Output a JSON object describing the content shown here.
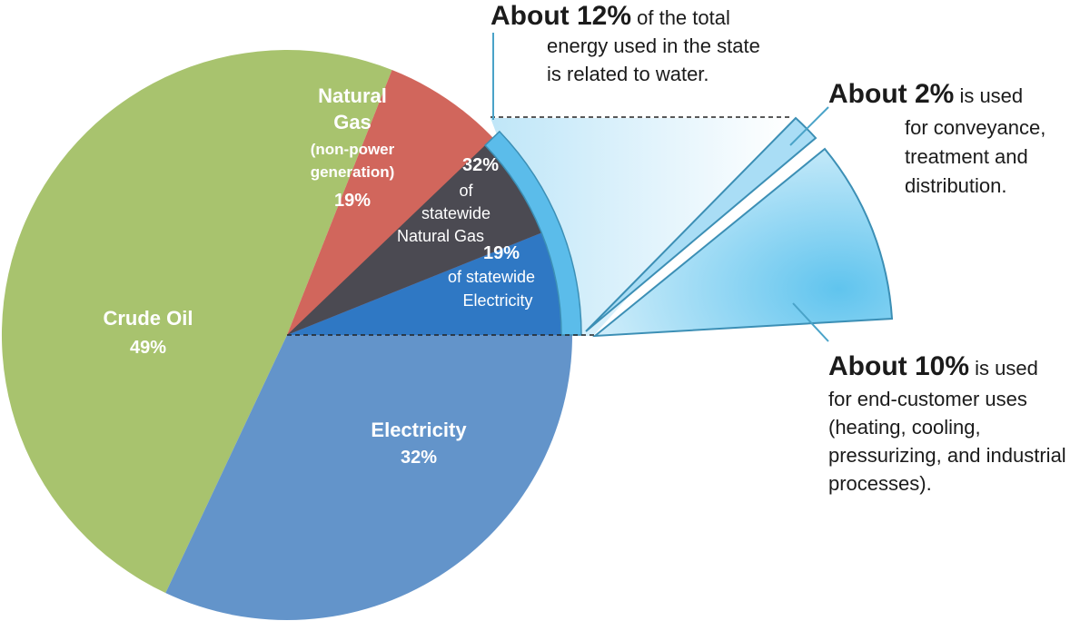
{
  "colors": {
    "crude_oil": "#a8c36e",
    "electricity": "#6394ca",
    "natural_gas": "#d1665c",
    "gas_water": "#4b4a52",
    "elec_water": "#2f78c4",
    "rim": "#5bbcea",
    "rim_stroke": "#3c8fb5",
    "leader": "#4aa3c8",
    "wedge_fill_light": "#d7f0fb",
    "wedge_fill_dark": "#60c4ee"
  },
  "chart_data": {
    "type": "pie",
    "title": "",
    "slices": [
      {
        "key": "crude_oil",
        "label": "Crude Oil",
        "value": 49,
        "value_label": "49%"
      },
      {
        "key": "electricity",
        "label": "Electricity",
        "value": 32,
        "value_label": "32%"
      },
      {
        "key": "natural_gas",
        "label_lines": [
          "Natural",
          "Gas"
        ],
        "note_lines": [
          "(non-power",
          "generation)"
        ],
        "value": 19,
        "value_label": "19%"
      }
    ],
    "water_related_portions": [
      {
        "key": "gas_water",
        "value_label": "32%",
        "text_lines": [
          "of",
          "statewide",
          "Natural Gas"
        ]
      },
      {
        "key": "elec_water",
        "value_label": "19%",
        "text_lines": [
          "of statewide",
          "Electricity"
        ]
      }
    ],
    "exploded_breakdown": [
      {
        "key": "conveyance",
        "value": 2,
        "value_label": "About 2%",
        "suffix": " is used",
        "text_lines": [
          "for conveyance,",
          "treatment and",
          "distribution."
        ]
      },
      {
        "key": "end_use",
        "value": 10,
        "value_label": "About 10%",
        "suffix": " is used",
        "text_lines": [
          "for end-customer uses",
          "(heating, cooling,",
          "pressurizing, and industrial",
          "processes)."
        ]
      }
    ]
  },
  "callout_total": {
    "bold": "About 12%",
    "rest_first": " of the total",
    "lines": [
      "energy used in the state",
      "is related to water."
    ]
  }
}
